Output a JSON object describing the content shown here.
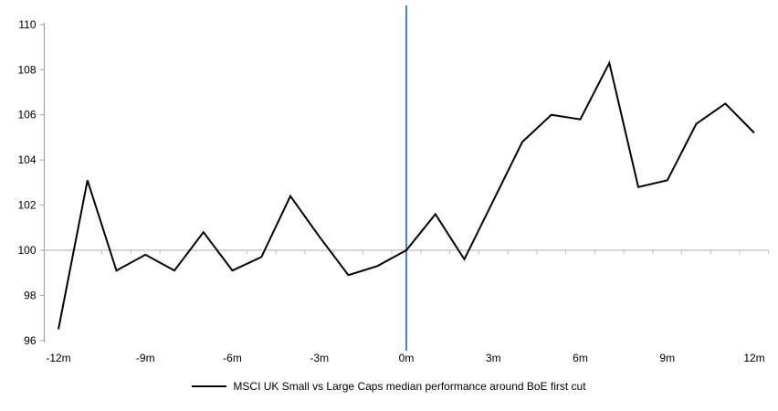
{
  "chart_data": {
    "type": "line",
    "title": "MSCI UK Small vs Large Caps median performance around BoE first cut",
    "xlabel": "",
    "ylabel": "",
    "x": [
      -12,
      -11,
      -10,
      -9,
      -8,
      -7,
      -6,
      -5,
      -4,
      -3,
      -2,
      -1,
      0,
      1,
      2,
      3,
      4,
      5,
      6,
      7,
      8,
      9,
      10,
      11,
      12
    ],
    "series": [
      {
        "name": "MSCI UK Small vs Large Caps median performance around BoE first cut",
        "values": [
          96.5,
          103.1,
          99.1,
          99.8,
          99.1,
          100.8,
          99.1,
          99.7,
          102.4,
          100.6,
          98.9,
          99.3,
          100.0,
          101.6,
          99.6,
          102.2,
          104.8,
          106.0,
          105.8,
          108.3,
          102.8,
          103.1,
          105.6,
          106.5,
          105.2
        ]
      }
    ],
    "ylim": [
      96,
      110
    ],
    "xlim": [
      -12.5,
      12.5
    ],
    "y_ticks": [
      96,
      98,
      100,
      102,
      104,
      106,
      108,
      110
    ],
    "x_tick_labels": [
      {
        "m": -12,
        "label": "-12m"
      },
      {
        "m": -9,
        "label": "-9m"
      },
      {
        "m": -6,
        "label": "-6m"
      },
      {
        "m": -3,
        "label": "-3m"
      },
      {
        "m": 0,
        "label": "0m"
      },
      {
        "m": 3,
        "label": "3m"
      },
      {
        "m": 6,
        "label": "6m"
      },
      {
        "m": 9,
        "label": "9m"
      },
      {
        "m": 12,
        "label": "12m"
      }
    ],
    "baseline_value": 100,
    "event_month": 0,
    "grid": "off",
    "legend_position": "bottom-center",
    "colors": {
      "series_line": "#000000",
      "event_line": "#4F81BD",
      "y_axis": "#A6A6A6",
      "baseline_axis": "#BFBFBF",
      "tick_text": "#000000"
    }
  }
}
